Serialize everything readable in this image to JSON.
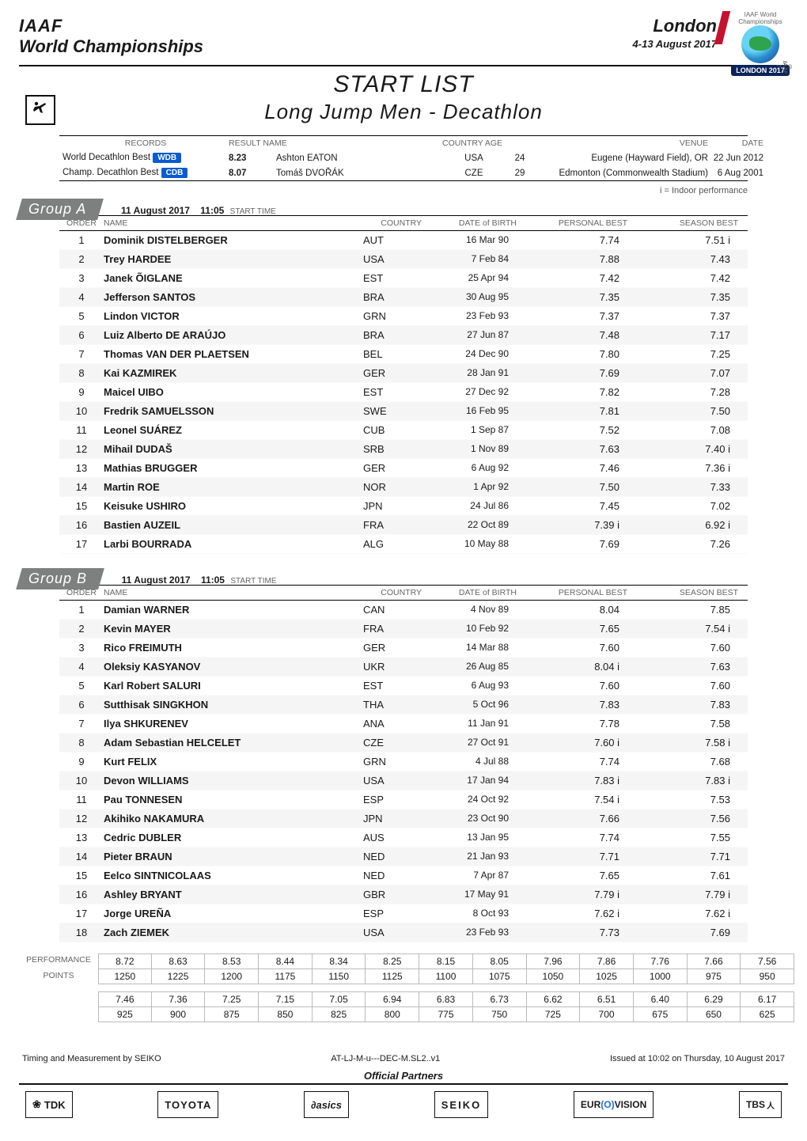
{
  "header": {
    "iaaf": "IAAF",
    "wc": "World Championships",
    "city": "London",
    "dates": "4-13 August 2017",
    "logo_top": "IAAF\nWorld\nChampionships",
    "logo_badge": "LONDON 2017",
    "logo_iaaf_side": "© IAAF ™"
  },
  "titles": {
    "t1": "START LIST",
    "t2": "Long Jump Men - Decathlon"
  },
  "records_header": {
    "c1": "RECORDS",
    "c2": "RESULT  NAME",
    "c3": "COUNTRY    AGE",
    "c4": "VENUE",
    "c5": "DATE"
  },
  "records": [
    {
      "label": "World Decathlon Best",
      "badge": "WDB",
      "result": "8.23",
      "name": "Ashton EATON",
      "country": "USA",
      "age": "24",
      "venue": "Eugene (Hayward Field), OR",
      "date": "22 Jun 2012"
    },
    {
      "label": "Champ. Decathlon Best",
      "badge": "CDB",
      "result": "8.07",
      "name": "Tomáš DVOŘÁK",
      "country": "CZE",
      "age": "29",
      "venue": "Edmonton (Commonwealth Stadium)",
      "date": "6 Aug 2001"
    }
  ],
  "legend": "i = Indoor performance",
  "start_info": {
    "date": "11 August  2017",
    "time": "11:05",
    "label": "START TIME"
  },
  "col_headers": {
    "order": "ORDER",
    "name": "NAME",
    "country": "COUNTRY",
    "dob": "DATE of BIRTH",
    "pb": "PERSONAL BEST",
    "sb": "SEASON BEST"
  },
  "groupA": {
    "title": "Group A",
    "athletes": [
      {
        "o": "1",
        "first": "Dominik",
        "last": "DISTELBERGER",
        "c": "AUT",
        "dob": "16 Mar 90",
        "pb": "7.74",
        "sb": "7.51 i"
      },
      {
        "o": "2",
        "first": "Trey",
        "last": "HARDEE",
        "c": "USA",
        "dob": "7 Feb 84",
        "pb": "7.88",
        "sb": "7.43"
      },
      {
        "o": "3",
        "first": "Janek",
        "last": "ÕIGLANE",
        "c": "EST",
        "dob": "25 Apr 94",
        "pb": "7.42",
        "sb": "7.42"
      },
      {
        "o": "4",
        "first": "Jefferson",
        "last": "SANTOS",
        "c": "BRA",
        "dob": "30 Aug 95",
        "pb": "7.35",
        "sb": "7.35"
      },
      {
        "o": "5",
        "first": "Lindon",
        "last": "VICTOR",
        "c": "GRN",
        "dob": "23 Feb 93",
        "pb": "7.37",
        "sb": "7.37"
      },
      {
        "o": "6",
        "first": "Luiz Alberto",
        "last": "DE ARAÚJO",
        "c": "BRA",
        "dob": "27 Jun 87",
        "pb": "7.48",
        "sb": "7.17"
      },
      {
        "o": "7",
        "first": "Thomas",
        "last": "VAN DER PLAETSEN",
        "c": "BEL",
        "dob": "24 Dec 90",
        "pb": "7.80",
        "sb": "7.25"
      },
      {
        "o": "8",
        "first": "Kai",
        "last": "KAZMIREK",
        "c": "GER",
        "dob": "28 Jan 91",
        "pb": "7.69",
        "sb": "7.07"
      },
      {
        "o": "9",
        "first": "Maicel",
        "last": "UIBO",
        "c": "EST",
        "dob": "27 Dec 92",
        "pb": "7.82",
        "sb": "7.28"
      },
      {
        "o": "10",
        "first": "Fredrik",
        "last": "SAMUELSSON",
        "c": "SWE",
        "dob": "16 Feb 95",
        "pb": "7.81",
        "sb": "7.50"
      },
      {
        "o": "11",
        "first": "Leonel",
        "last": "SUÁREZ",
        "c": "CUB",
        "dob": "1 Sep 87",
        "pb": "7.52",
        "sb": "7.08"
      },
      {
        "o": "12",
        "first": "Mihail",
        "last": "DUDAŠ",
        "c": "SRB",
        "dob": "1 Nov 89",
        "pb": "7.63",
        "sb": "7.40 i"
      },
      {
        "o": "13",
        "first": "Mathias",
        "last": "BRUGGER",
        "c": "GER",
        "dob": "6 Aug 92",
        "pb": "7.46",
        "sb": "7.36 i"
      },
      {
        "o": "14",
        "first": "Martin",
        "last": "ROE",
        "c": "NOR",
        "dob": "1 Apr 92",
        "pb": "7.50",
        "sb": "7.33"
      },
      {
        "o": "15",
        "first": "Keisuke",
        "last": "USHIRO",
        "c": "JPN",
        "dob": "24 Jul 86",
        "pb": "7.45",
        "sb": "7.02"
      },
      {
        "o": "16",
        "first": "Bastien",
        "last": "AUZEIL",
        "c": "FRA",
        "dob": "22 Oct 89",
        "pb": "7.39 i",
        "sb": "6.92 i"
      },
      {
        "o": "17",
        "first": "Larbi",
        "last": "BOURRADA",
        "c": "ALG",
        "dob": "10 May 88",
        "pb": "7.69",
        "sb": "7.26"
      }
    ]
  },
  "groupB": {
    "title": "Group B",
    "athletes": [
      {
        "o": "1",
        "first": "Damian",
        "last": "WARNER",
        "c": "CAN",
        "dob": "4 Nov 89",
        "pb": "8.04",
        "sb": "7.85"
      },
      {
        "o": "2",
        "first": "Kevin",
        "last": "MAYER",
        "c": "FRA",
        "dob": "10 Feb 92",
        "pb": "7.65",
        "sb": "7.54 i"
      },
      {
        "o": "3",
        "first": "Rico",
        "last": "FREIMUTH",
        "c": "GER",
        "dob": "14 Mar 88",
        "pb": "7.60",
        "sb": "7.60"
      },
      {
        "o": "4",
        "first": "Oleksiy",
        "last": "KASYANOV",
        "c": "UKR",
        "dob": "26 Aug 85",
        "pb": "8.04 i",
        "sb": "7.63"
      },
      {
        "o": "5",
        "first": "Karl Robert",
        "last": "SALURI",
        "c": "EST",
        "dob": "6 Aug 93",
        "pb": "7.60",
        "sb": "7.60"
      },
      {
        "o": "6",
        "first": "Sutthisak",
        "last": "SINGKHON",
        "c": "THA",
        "dob": "5 Oct 96",
        "pb": "7.83",
        "sb": "7.83"
      },
      {
        "o": "7",
        "first": "Ilya",
        "last": "SHKURENEV",
        "c": "ANA",
        "dob": "11 Jan 91",
        "pb": "7.78",
        "sb": "7.58"
      },
      {
        "o": "8",
        "first": "Adam Sebastian",
        "last": "HELCELET",
        "c": "CZE",
        "dob": "27 Oct 91",
        "pb": "7.60 i",
        "sb": "7.58 i"
      },
      {
        "o": "9",
        "first": "Kurt",
        "last": "FELIX",
        "c": "GRN",
        "dob": "4 Jul 88",
        "pb": "7.74",
        "sb": "7.68"
      },
      {
        "o": "10",
        "first": "Devon",
        "last": "WILLIAMS",
        "c": "USA",
        "dob": "17 Jan 94",
        "pb": "7.83 i",
        "sb": "7.83 i"
      },
      {
        "o": "11",
        "first": "Pau",
        "last": "TONNESEN",
        "c": "ESP",
        "dob": "24 Oct 92",
        "pb": "7.54 i",
        "sb": "7.53"
      },
      {
        "o": "12",
        "first": "Akihiko",
        "last": "NAKAMURA",
        "c": "JPN",
        "dob": "23 Oct 90",
        "pb": "7.66",
        "sb": "7.56"
      },
      {
        "o": "13",
        "first": "Cedric",
        "last": "DUBLER",
        "c": "AUS",
        "dob": "13 Jan 95",
        "pb": "7.74",
        "sb": "7.55"
      },
      {
        "o": "14",
        "first": "Pieter",
        "last": "BRAUN",
        "c": "NED",
        "dob": "21 Jan 93",
        "pb": "7.71",
        "sb": "7.71"
      },
      {
        "o": "15",
        "first": "Eelco",
        "last": "SINTNICOLAAS",
        "c": "NED",
        "dob": "7 Apr 87",
        "pb": "7.65",
        "sb": "7.61"
      },
      {
        "o": "16",
        "first": "Ashley",
        "last": "BRYANT",
        "c": "GBR",
        "dob": "17 May 91",
        "pb": "7.79 i",
        "sb": "7.79 i"
      },
      {
        "o": "17",
        "first": "Jorge",
        "last": "UREÑA",
        "c": "ESP",
        "dob": "8 Oct 93",
        "pb": "7.62 i",
        "sb": "7.62 i"
      },
      {
        "o": "18",
        "first": "Zach",
        "last": "ZIEMEK",
        "c": "USA",
        "dob": "23 Feb 93",
        "pb": "7.73",
        "sb": "7.69"
      }
    ]
  },
  "perf": {
    "label1": "PERFORMANCE",
    "label2": "POINTS",
    "row1a": [
      "8.72",
      "8.63",
      "8.53",
      "8.44",
      "8.34",
      "8.25",
      "8.15",
      "8.05",
      "7.96",
      "7.86",
      "7.76",
      "7.66",
      "7.56"
    ],
    "row1b": [
      "1250",
      "1225",
      "1200",
      "1175",
      "1150",
      "1125",
      "1100",
      "1075",
      "1050",
      "1025",
      "1000",
      "975",
      "950"
    ],
    "row2a": [
      "7.46",
      "7.36",
      "7.25",
      "7.15",
      "7.05",
      "6.94",
      "6.83",
      "6.73",
      "6.62",
      "6.51",
      "6.40",
      "6.29",
      "6.17"
    ],
    "row2b": [
      "925",
      "900",
      "875",
      "850",
      "825",
      "800",
      "775",
      "750",
      "725",
      "700",
      "675",
      "650",
      "625"
    ]
  },
  "footer": {
    "left": "Timing and Measurement by SEIKO",
    "mid": "AT-LJ-M-u---DEC-M.SL2..v1",
    "right": "Issued at 10:02 on Thursday, 10 August  2017",
    "partners": "Official Partners"
  },
  "sponsors": {
    "tdk": "TDK",
    "toyota": "TOYOTA",
    "asics": "asics",
    "seiko": "SEIKO",
    "eurovision_pre": "EUR",
    "eurovision_o": "(O)",
    "eurovision_post": "VISION",
    "tbs": "TBS",
    "tbs_jp": "人"
  }
}
